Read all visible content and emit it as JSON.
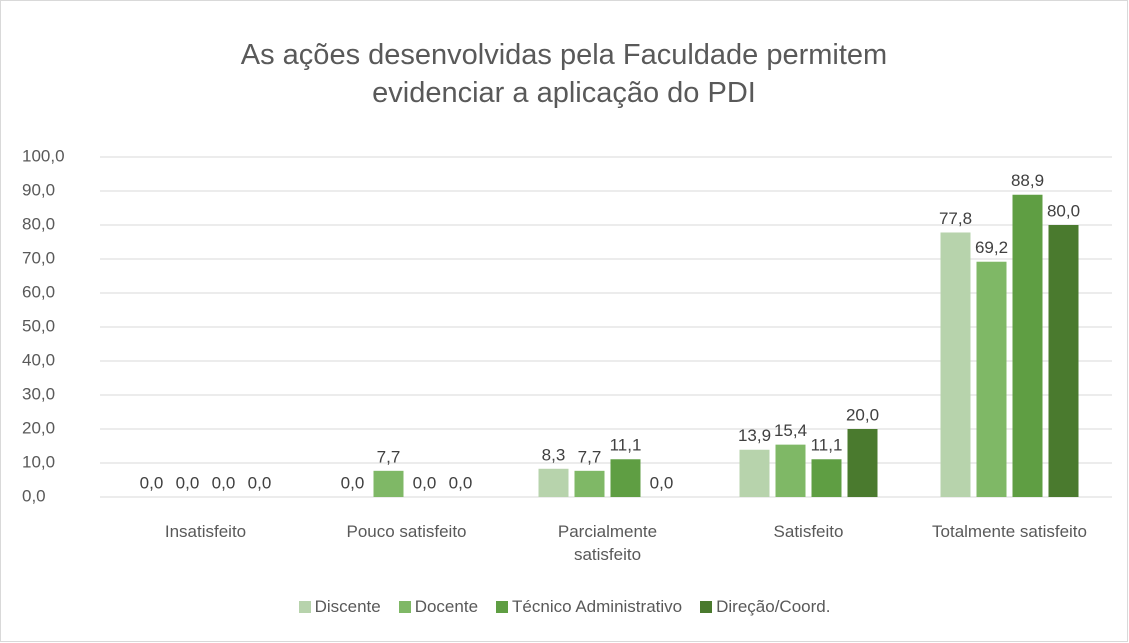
{
  "chart_data": {
    "type": "bar",
    "title": "As ações desenvolvidas pela Faculdade permitem evidenciar a aplicação do PDI",
    "categories": [
      "Insatisfeito",
      "Pouco satisfeito",
      "Parcialmente satisfeito",
      "Satisfeito",
      "Totalmente satisfeito"
    ],
    "series": [
      {
        "name": "Discente",
        "color": "#b7d3ac",
        "values": [
          0,
          0,
          8.3,
          13.9,
          77.8
        ],
        "value_labels": [
          "0,0",
          "0,0",
          "8,3",
          "13,9",
          "77,8"
        ]
      },
      {
        "name": "Docente",
        "color": "#7fb866",
        "values": [
          0,
          7.7,
          7.7,
          15.4,
          69.2
        ],
        "value_labels": [
          "0,0",
          "7,7",
          "7,7",
          "15,4",
          "69,2"
        ]
      },
      {
        "name": "Técnico Administrativo",
        "color": "#5f9e43",
        "values": [
          0,
          0,
          11.1,
          11.1,
          88.9
        ],
        "value_labels": [
          "0,0",
          "0,0",
          "11,1",
          "11,1",
          "88,9"
        ]
      },
      {
        "name": "Direção/Coord.",
        "color": "#4a7a2e",
        "values": [
          0,
          0,
          0,
          20,
          80
        ],
        "value_labels": [
          "0,0",
          "0,0",
          "0,0",
          "20,0",
          "80,0"
        ]
      }
    ],
    "ylim": [
      0,
      100
    ],
    "yticks": [
      {
        "value": 0,
        "label": "0,0"
      },
      {
        "value": 10,
        "label": "10,0"
      },
      {
        "value": 20,
        "label": "20,0"
      },
      {
        "value": 30,
        "label": "30,0"
      },
      {
        "value": 40,
        "label": "40,0"
      },
      {
        "value": 50,
        "label": "50,0"
      },
      {
        "value": 60,
        "label": "60,0"
      },
      {
        "value": 70,
        "label": "70,0"
      },
      {
        "value": 80,
        "label": "80,0"
      },
      {
        "value": 90,
        "label": "90,0"
      },
      {
        "value": 100,
        "label": "100,0"
      }
    ],
    "grid": true,
    "legend": "bottom"
  }
}
